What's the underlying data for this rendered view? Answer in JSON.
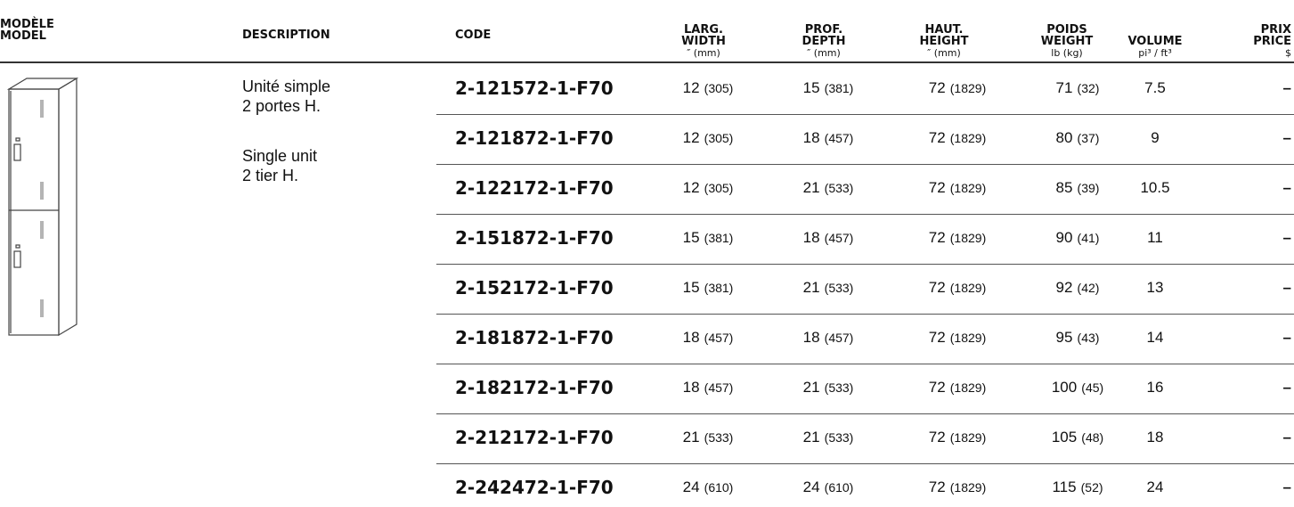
{
  "header": {
    "model": [
      "MODÈLE",
      "MODEL"
    ],
    "description": "DESCRIPTION",
    "code": "CODE",
    "width": [
      "LARG.",
      "WIDTH",
      "″ (mm)"
    ],
    "depth": [
      "PROF.",
      "DEPTH",
      "″ (mm)"
    ],
    "height": [
      "HAUT.",
      "HEIGHT",
      "″ (mm)"
    ],
    "weight": [
      "POIDS",
      "WEIGHT",
      "lb (kg)"
    ],
    "volume": [
      "VOLUME",
      "pi³ / ft³"
    ],
    "price": [
      "PRIX",
      "PRICE",
      "$"
    ]
  },
  "description": [
    "Unité simple",
    "2 portes H.",
    "Single unit",
    "2 tier H."
  ],
  "rows": [
    {
      "code": "2-121572-1-F70",
      "width": 12,
      "width_mm": "(305)",
      "depth": 15,
      "depth_mm": "(381)",
      "height": 72,
      "height_mm": "(1829)",
      "weight": 71,
      "weight_kg": "(32)",
      "volume": 7.5,
      "price": "–"
    },
    {
      "code": "2-121872-1-F70",
      "width": 12,
      "width_mm": "(305)",
      "depth": 18,
      "depth_mm": "(457)",
      "height": 72,
      "height_mm": "(1829)",
      "weight": 80,
      "weight_kg": "(37)",
      "volume": 9,
      "price": "–"
    },
    {
      "code": "2-122172-1-F70",
      "width": 12,
      "width_mm": "(305)",
      "depth": 21,
      "depth_mm": "(533)",
      "height": 72,
      "height_mm": "(1829)",
      "weight": 85,
      "weight_kg": "(39)",
      "volume": 10.5,
      "price": "–"
    },
    {
      "code": "2-151872-1-F70",
      "width": 15,
      "width_mm": "(381)",
      "depth": 18,
      "depth_mm": "(457)",
      "height": 72,
      "height_mm": "(1829)",
      "weight": 90,
      "weight_kg": "(41)",
      "volume": 11,
      "price": "–"
    },
    {
      "code": "2-152172-1-F70",
      "width": 15,
      "width_mm": "(381)",
      "depth": 21,
      "depth_mm": "(533)",
      "height": 72,
      "height_mm": "(1829)",
      "weight": 92,
      "weight_kg": "(42)",
      "volume": 13,
      "price": "–"
    },
    {
      "code": "2-181872-1-F70",
      "width": 18,
      "width_mm": "(457)",
      "depth": 18,
      "depth_mm": "(457)",
      "height": 72,
      "height_mm": "(1829)",
      "weight": 95,
      "weight_kg": "(43)",
      "volume": 14,
      "price": "–"
    },
    {
      "code": "2-182172-1-F70",
      "width": 18,
      "width_mm": "(457)",
      "depth": 21,
      "depth_mm": "(533)",
      "height": 72,
      "height_mm": "(1829)",
      "weight": 100,
      "weight_kg": "(45)",
      "volume": 16,
      "price": "–"
    },
    {
      "code": "2-212172-1-F70",
      "width": 21,
      "width_mm": "(533)",
      "depth": 21,
      "depth_mm": "(533)",
      "height": 72,
      "height_mm": "(1829)",
      "weight": 105,
      "weight_kg": "(48)",
      "volume": 18,
      "price": "–"
    },
    {
      "code": "2-242472-1-F70",
      "width": 24,
      "width_mm": "(610)",
      "depth": 24,
      "depth_mm": "(610)",
      "height": 72,
      "height_mm": "(1829)",
      "weight": 115,
      "weight_kg": "(52)",
      "volume": 24,
      "price": "–"
    }
  ]
}
